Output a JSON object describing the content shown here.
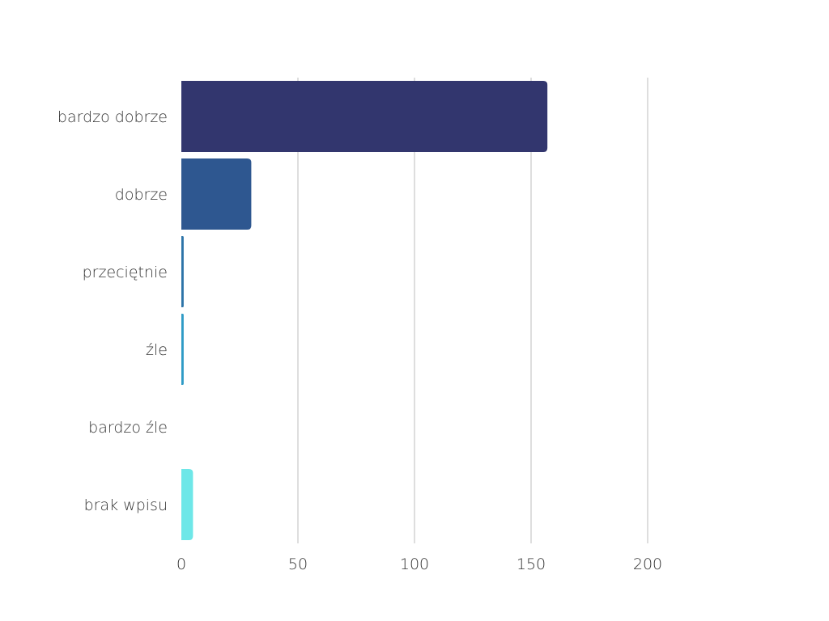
{
  "chart_data": {
    "type": "bar",
    "orientation": "horizontal",
    "categories": [
      "bardzo dobrze",
      "dobrze",
      "przeciętnie",
      "źle",
      "bardzo źle",
      "brak wpisu"
    ],
    "values": [
      157,
      30,
      1,
      1,
      0,
      5
    ],
    "colors": [
      "#32366e",
      "#2e5790",
      "#2d74a8",
      "#2f9bc6",
      "#4cc3d6",
      "#6ee7e8"
    ],
    "xlim": [
      0,
      200
    ],
    "xticks": [
      0,
      50,
      100,
      150,
      200
    ],
    "xtick_labels": [
      "0",
      "50",
      "100",
      "150",
      "200"
    ],
    "grid": "vertical",
    "title": "",
    "xlabel": "",
    "ylabel": ""
  }
}
